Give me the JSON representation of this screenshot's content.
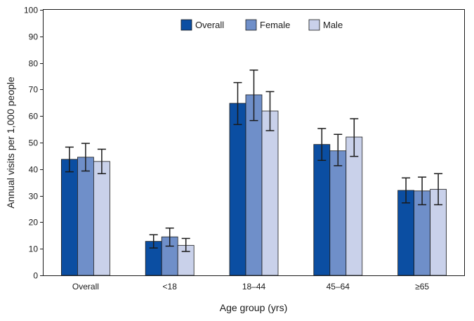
{
  "chart_data": {
    "type": "bar",
    "title": "",
    "xlabel": "Age group (yrs)",
    "ylabel": "Annual visits per 1,000 people",
    "ylim": [
      0,
      100
    ],
    "yticks": [
      0,
      10,
      20,
      30,
      40,
      50,
      60,
      70,
      80,
      90,
      100
    ],
    "categories": [
      "Overall",
      "<18",
      "18–44",
      "45–64",
      "≥65"
    ],
    "legend_position": "top-center",
    "series": [
      {
        "name": "Overall",
        "color": "#0b4ea2",
        "values": [
          43.7,
          12.8,
          64.8,
          49.3,
          32.0
        ],
        "ci_low": [
          39.0,
          10.3,
          56.8,
          43.3,
          27.3
        ],
        "ci_high": [
          48.3,
          15.3,
          72.6,
          55.3,
          36.7
        ]
      },
      {
        "name": "Female",
        "color": "#6f8fc9",
        "values": [
          44.5,
          14.5,
          68.0,
          46.9,
          31.8
        ],
        "ci_low": [
          39.3,
          11.0,
          58.3,
          41.3,
          26.6
        ],
        "ci_high": [
          49.7,
          17.8,
          77.3,
          53.1,
          37.0
        ]
      },
      {
        "name": "Male",
        "color": "#c9d1ea",
        "values": [
          42.9,
          11.3,
          61.9,
          52.1,
          32.4
        ],
        "ci_low": [
          38.3,
          9.0,
          54.5,
          44.8,
          26.6
        ],
        "ci_high": [
          47.5,
          13.9,
          69.2,
          59.0,
          38.3
        ]
      }
    ]
  }
}
